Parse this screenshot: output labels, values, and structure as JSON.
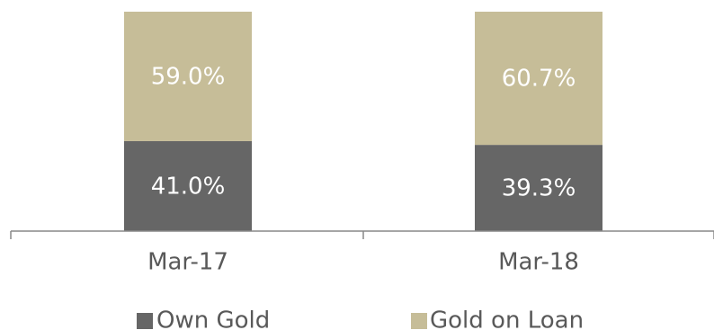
{
  "chart_data": {
    "type": "bar",
    "stacked": true,
    "percent": true,
    "categories": [
      "Mar-17",
      "Mar-18"
    ],
    "series": [
      {
        "name": "Own Gold",
        "values": [
          41.0,
          39.3
        ],
        "labels": [
          "41.0%",
          "39.3%"
        ],
        "color": "#666666"
      },
      {
        "name": "Gold on Loan",
        "values": [
          59.0,
          60.7
        ],
        "labels": [
          "59.0%",
          "60.7%"
        ],
        "color": "#c6bd98"
      }
    ],
    "ylim": [
      0,
      100
    ],
    "grid": false,
    "legend_position": "bottom"
  }
}
